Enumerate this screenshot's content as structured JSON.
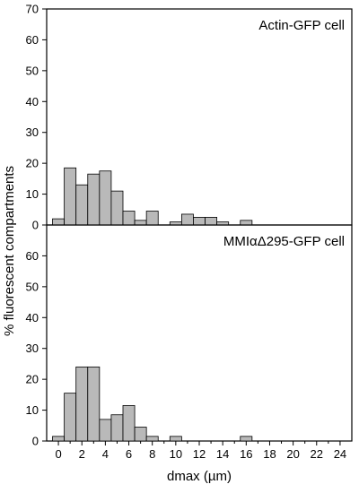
{
  "chart_data": [
    {
      "type": "bar",
      "title": "Actin-GFP cell",
      "x": [
        0,
        1,
        2,
        3,
        4,
        5,
        6,
        7,
        8,
        9,
        10,
        11,
        12,
        13,
        14,
        15,
        16
      ],
      "values": [
        2,
        18.5,
        13,
        16.5,
        17.5,
        11,
        4.5,
        1.5,
        4.5,
        0,
        1,
        3.5,
        2.5,
        2.5,
        1,
        0,
        1.5
      ],
      "ylim": [
        0,
        70
      ],
      "yticks": [
        0,
        10,
        20,
        30,
        40,
        50,
        60,
        70
      ],
      "xlim": [
        -1,
        25
      ]
    },
    {
      "type": "bar",
      "title": "MMIαΔ295-GFP cell",
      "x": [
        0,
        1,
        2,
        3,
        4,
        5,
        6,
        7,
        8,
        9,
        10,
        11,
        12,
        13,
        14,
        15,
        16
      ],
      "values": [
        1.5,
        15.5,
        24,
        24,
        7,
        8.5,
        11.5,
        4.5,
        1.5,
        0,
        1.5,
        0,
        0,
        0,
        0,
        0,
        1.5
      ],
      "ylim": [
        0,
        70
      ],
      "yticks": [
        0,
        10,
        20,
        30,
        40,
        50,
        60
      ],
      "xlim": [
        -1,
        25
      ]
    }
  ],
  "shared": {
    "ylabel": "% fluorescent compartments",
    "xlabel": "dmax (µm)",
    "xticks": [
      0,
      2,
      4,
      6,
      8,
      10,
      12,
      14,
      16,
      18,
      20,
      22,
      24
    ]
  }
}
